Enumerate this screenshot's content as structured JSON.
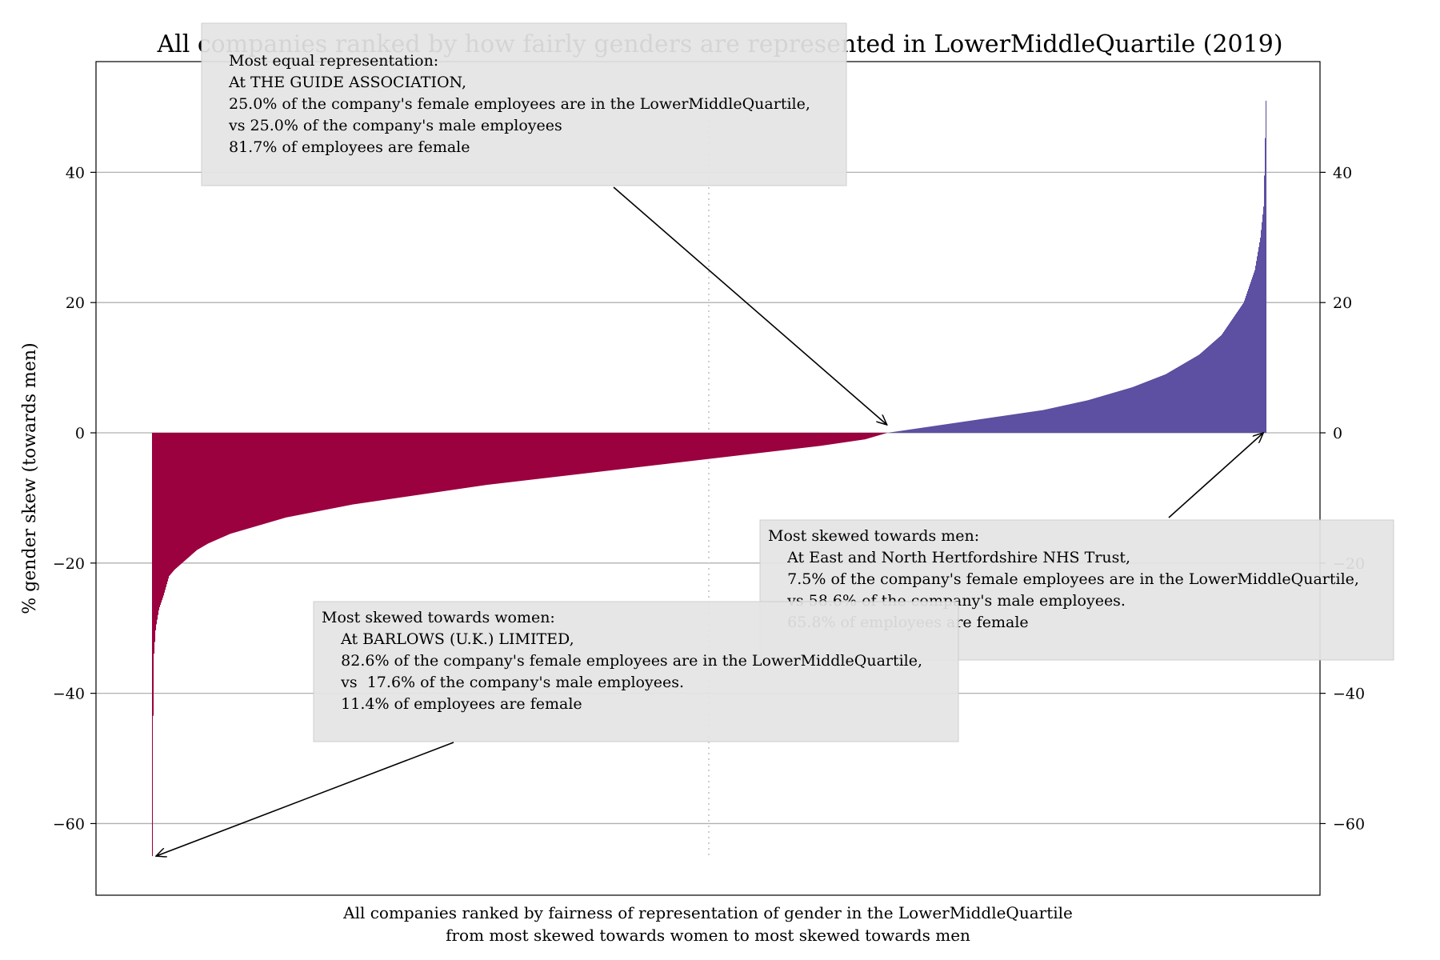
{
  "chart_data": {
    "type": "bar",
    "title": "All companies ranked by how fairly genders are represented in LowerMiddleQuartile (2019)",
    "ylabel": "% gender skew (towards men)",
    "xlabel_lines": [
      "All companies ranked by fairness of representation of gender in the LowerMiddleQuartile",
      "from most skewed towards women to most skewed towards men"
    ],
    "ylim": [
      -71,
      57
    ],
    "yticks": [
      40,
      20,
      0,
      -20,
      -40,
      -60
    ],
    "ytick_labels": [
      "40",
      "20",
      "0",
      "−20",
      "−40",
      "−60"
    ],
    "grid": true,
    "x_rank_range": [
      0,
      1
    ],
    "median_marker_rank": 0.5,
    "series": [
      {
        "color_negative": "#9b003f",
        "color_positive": "#5d4fa1",
        "profile": [
          [
            0.0,
            -65.0
          ],
          [
            0.001,
            -35.0
          ],
          [
            0.003,
            -30.0
          ],
          [
            0.006,
            -27.0
          ],
          [
            0.01,
            -25.0
          ],
          [
            0.015,
            -22.0
          ],
          [
            0.02,
            -21.0
          ],
          [
            0.03,
            -19.5
          ],
          [
            0.04,
            -18.0
          ],
          [
            0.05,
            -17.0
          ],
          [
            0.07,
            -15.5
          ],
          [
            0.09,
            -14.5
          ],
          [
            0.12,
            -13.0
          ],
          [
            0.15,
            -12.0
          ],
          [
            0.18,
            -11.0
          ],
          [
            0.22,
            -10.0
          ],
          [
            0.26,
            -9.0
          ],
          [
            0.3,
            -8.0
          ],
          [
            0.35,
            -7.0
          ],
          [
            0.4,
            -6.0
          ],
          [
            0.45,
            -5.0
          ],
          [
            0.5,
            -4.0
          ],
          [
            0.55,
            -3.0
          ],
          [
            0.6,
            -2.0
          ],
          [
            0.64,
            -1.0
          ],
          [
            0.66,
            0.0
          ],
          [
            0.68,
            0.5
          ],
          [
            0.72,
            1.5
          ],
          [
            0.76,
            2.5
          ],
          [
            0.8,
            3.5
          ],
          [
            0.84,
            5.0
          ],
          [
            0.88,
            7.0
          ],
          [
            0.91,
            9.0
          ],
          [
            0.94,
            12.0
          ],
          [
            0.96,
            15.0
          ],
          [
            0.98,
            20.0
          ],
          [
            0.99,
            25.0
          ],
          [
            0.995,
            30.0
          ],
          [
            0.998,
            35.0
          ],
          [
            1.0,
            51.0
          ]
        ]
      }
    ],
    "annotations": [
      {
        "lines": [
          "Most equal representation:",
          "At THE GUIDE ASSOCIATION,",
          "25.0% of the company's female employees are in the LowerMiddleQuartile,",
          "vs 25.0% of the company's male employees",
          "81.7% of employees are female"
        ],
        "target_rank": 0.66,
        "target_value": 0
      },
      {
        "lines": [
          "Most skewed towards men:",
          "    At East and North Hertfordshire NHS Trust,",
          "    7.5% of the company's female employees are in the LowerMiddleQuartile,",
          "    vs 58.6% of the company's male employees.",
          "    65.8% of employees are female"
        ],
        "target_rank": 0.998,
        "target_value": 0
      },
      {
        "lines": [
          "Most skewed towards women:",
          "    At BARLOWS (U.K.) LIMITED,",
          "    82.6% of the company's female employees are in the LowerMiddleQuartile,",
          "    vs  17.6% of the company's male employees.",
          "    11.4% of employees are female"
        ],
        "target_rank": 0.0,
        "target_value": -65
      }
    ],
    "colors": {
      "grid": "#b0b0b0",
      "median_line": "#cfcfcf",
      "annotation_box": "#e5e5e5",
      "annotation_border": "#cccccc"
    }
  }
}
